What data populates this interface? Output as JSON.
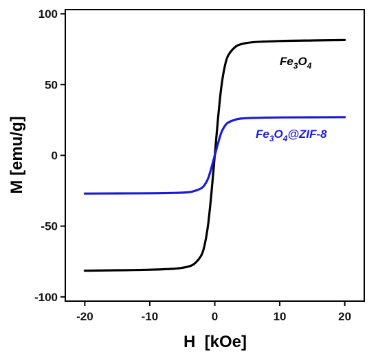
{
  "chart_data": {
    "type": "line",
    "xlabel": "H  [kOe]",
    "ylabel": "M [emu/g]",
    "xlim": [
      -23,
      23
    ],
    "ylim": [
      -103,
      103
    ],
    "xticks": [
      -20,
      -10,
      0,
      10,
      20
    ],
    "yticks": [
      -100,
      -50,
      0,
      50,
      100
    ],
    "grid": false,
    "series": [
      {
        "name": "Fe3O4",
        "label_parts": [
          {
            "text": "Fe",
            "sub": false
          },
          {
            "text": "3",
            "sub": true
          },
          {
            "text": "O",
            "sub": false
          },
          {
            "text": "4",
            "sub": true
          }
        ],
        "color": "#000000",
        "x": [
          -20,
          -15,
          -10,
          -6,
          -4,
          -3,
          -2,
          -1.5,
          -1,
          -0.5,
          0,
          0.5,
          1,
          1.5,
          2,
          3,
          4,
          6,
          10,
          15,
          20
        ],
        "y": [
          -81.5,
          -81.2,
          -80.8,
          -80,
          -78.5,
          -76,
          -70,
          -62,
          -48,
          -26,
          0,
          26,
          48,
          62,
          70,
          76,
          78.5,
          80,
          80.8,
          81.2,
          81.5
        ]
      },
      {
        "name": "Fe3O4@ZIF-8",
        "label_parts": [
          {
            "text": "Fe",
            "sub": false
          },
          {
            "text": "3",
            "sub": true
          },
          {
            "text": "O",
            "sub": false
          },
          {
            "text": "4",
            "sub": true
          },
          {
            "text": "@ZIF-8",
            "sub": false
          }
        ],
        "color": "#1a1adf",
        "x": [
          -20,
          -15,
          -10,
          -6,
          -4,
          -3,
          -2,
          -1.5,
          -1,
          -0.5,
          0,
          0.5,
          1,
          1.5,
          2,
          3,
          4,
          6,
          10,
          15,
          20
        ],
        "y": [
          -27,
          -26.9,
          -26.8,
          -26.5,
          -26,
          -25,
          -23,
          -20.5,
          -16,
          -8.5,
          0,
          8.5,
          16,
          20.5,
          23,
          25,
          26,
          26.5,
          26.8,
          26.9,
          27
        ]
      }
    ]
  }
}
